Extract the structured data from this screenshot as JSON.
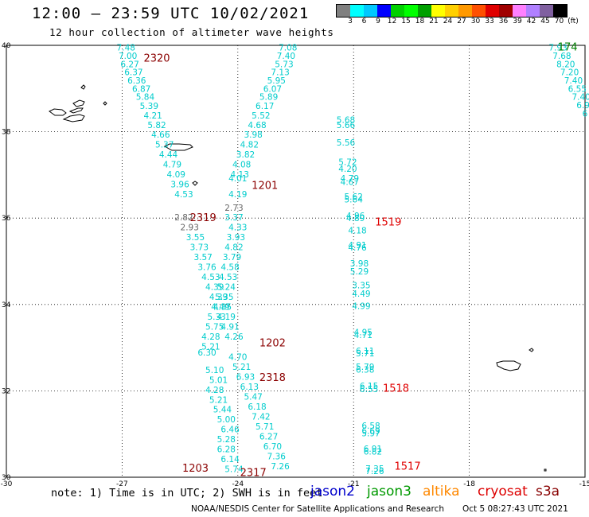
{
  "header": {
    "title": "12:00 – 23:59 UTC 10/02/2021",
    "subtitle": "12 hour collection of altimeter wave heights"
  },
  "color_scale": {
    "unit": "(ft)",
    "labels": [
      "3",
      "6",
      "9",
      "12",
      "15",
      "18",
      "21",
      "24",
      "27",
      "30",
      "33",
      "36",
      "39",
      "42",
      "45",
      "70"
    ],
    "colors": [
      "#808080",
      "#00ffff",
      "#00c8ff",
      "#0000ff",
      "#00d000",
      "#00ff00",
      "#00a000",
      "#ffff00",
      "#ffd000",
      "#ff9900",
      "#ff5000",
      "#e00000",
      "#a00000",
      "#ff80ff",
      "#b080ff",
      "#8060a0",
      "#000000"
    ]
  },
  "map": {
    "lat_labels": [
      "40",
      "38",
      "36",
      "34",
      "32",
      "30"
    ],
    "lon_labels": [
      "-30",
      "-27",
      "-24",
      "-21",
      "-18",
      "-15"
    ],
    "lon_range": [
      -30,
      -15
    ],
    "lat_range": [
      30,
      40
    ]
  },
  "tracks": [
    {
      "label": "2320",
      "label_color": "#8b0000",
      "label_lon": -26.1,
      "label_lat": 39.7,
      "points": [
        {
          "v": "7.48",
          "lon": -26.9,
          "lat": 39.95,
          "c": "#00cccc"
        },
        {
          "v": "7.00",
          "lon": -26.85,
          "lat": 39.76,
          "c": "#00cccc"
        },
        {
          "v": "6.27",
          "lon": -26.8,
          "lat": 39.57,
          "c": "#00cccc"
        },
        {
          "v": "6.37",
          "lon": -26.7,
          "lat": 39.38,
          "c": "#00cccc"
        },
        {
          "v": "6.36",
          "lon": -26.62,
          "lat": 39.19,
          "c": "#00cccc"
        },
        {
          "v": "6.87",
          "lon": -26.5,
          "lat": 39.0,
          "c": "#00cccc"
        },
        {
          "v": "5.84",
          "lon": -26.4,
          "lat": 38.81,
          "c": "#00cccc"
        },
        {
          "v": "5.39",
          "lon": -26.3,
          "lat": 38.6,
          "c": "#00cccc"
        },
        {
          "v": "4.21",
          "lon": -26.2,
          "lat": 38.38,
          "c": "#00cccc"
        },
        {
          "v": "5.82",
          "lon": -26.1,
          "lat": 38.16,
          "c": "#00cccc"
        },
        {
          "v": "4.66",
          "lon": -26.0,
          "lat": 37.94,
          "c": "#00cccc"
        },
        {
          "v": "5.37",
          "lon": -25.9,
          "lat": 37.71,
          "c": "#00cccc"
        },
        {
          "v": "4.44",
          "lon": -25.8,
          "lat": 37.48,
          "c": "#00cccc"
        },
        {
          "v": "4.79",
          "lon": -25.7,
          "lat": 37.25,
          "c": "#00cccc"
        },
        {
          "v": "4.09",
          "lon": -25.6,
          "lat": 37.02,
          "c": "#00cccc"
        },
        {
          "v": "3.96",
          "lon": -25.5,
          "lat": 36.79,
          "c": "#00cccc"
        },
        {
          "v": "4.53",
          "lon": -25.4,
          "lat": 36.56,
          "c": "#00cccc"
        }
      ]
    },
    {
      "label": "2319",
      "label_color": "#8b0000",
      "label_lon": -24.9,
      "label_lat": 36.0,
      "points": [
        {
          "v": "2.82",
          "lon": -25.4,
          "lat": 36.02,
          "c": "#666666"
        },
        {
          "v": "2.93",
          "lon": -25.25,
          "lat": 35.79,
          "c": "#666666"
        },
        {
          "v": "3.55",
          "lon": -25.1,
          "lat": 35.56,
          "c": "#00cccc"
        },
        {
          "v": "3.73",
          "lon": -25.0,
          "lat": 35.33,
          "c": "#00cccc"
        },
        {
          "v": "3.57",
          "lon": -24.9,
          "lat": 35.1,
          "c": "#00cccc"
        },
        {
          "v": "3.76",
          "lon": -24.8,
          "lat": 34.87,
          "c": "#00cccc"
        },
        {
          "v": "4.53",
          "lon": -24.7,
          "lat": 34.64,
          "c": "#00cccc"
        },
        {
          "v": "4.39",
          "lon": -24.6,
          "lat": 34.41,
          "c": "#00cccc"
        },
        {
          "v": "4.39",
          "lon": -24.5,
          "lat": 34.18,
          "c": "#00cccc"
        },
        {
          "v": "4.35",
          "lon": -24.4,
          "lat": 33.95,
          "c": "#00cccc"
        },
        {
          "v": "4.19",
          "lon": -24.3,
          "lat": 33.72,
          "c": "#00cccc"
        },
        {
          "v": "4.91",
          "lon": -24.2,
          "lat": 33.49,
          "c": "#00cccc"
        },
        {
          "v": "4.26",
          "lon": -24.1,
          "lat": 33.26,
          "c": "#00cccc"
        },
        {
          "v": "4.70",
          "lon": -24.0,
          "lat": 32.79,
          "c": "#00cccc"
        },
        {
          "v": "5.21",
          "lon": -23.9,
          "lat": 32.56,
          "c": "#00cccc"
        },
        {
          "v": "6.93",
          "lon": -23.8,
          "lat": 32.33,
          "c": "#00cccc"
        },
        {
          "v": "6.13",
          "lon": -23.7,
          "lat": 32.1,
          "c": "#00cccc"
        },
        {
          "v": "5.47",
          "lon": -23.6,
          "lat": 31.87,
          "c": "#00cccc"
        },
        {
          "v": "6.18",
          "lon": -23.5,
          "lat": 31.64,
          "c": "#00cccc"
        },
        {
          "v": "7.42",
          "lon": -23.4,
          "lat": 31.41,
          "c": "#00cccc"
        },
        {
          "v": "5.71",
          "lon": -23.3,
          "lat": 31.18,
          "c": "#00cccc"
        },
        {
          "v": "6.27",
          "lon": -23.2,
          "lat": 30.95,
          "c": "#00cccc"
        },
        {
          "v": "6.70",
          "lon": -23.1,
          "lat": 30.72,
          "c": "#00cccc"
        },
        {
          "v": "7.36",
          "lon": -23.0,
          "lat": 30.49,
          "c": "#00cccc"
        },
        {
          "v": "7.26",
          "lon": -22.9,
          "lat": 30.26,
          "c": "#00cccc"
        }
      ]
    },
    {
      "label": "1201",
      "label_color": "#8b0000",
      "label_lon": -23.3,
      "label_lat": 36.75,
      "points": [
        {
          "v": "7.08",
          "lon": -22.7,
          "lat": 39.95,
          "c": "#00cccc"
        },
        {
          "v": "7.40",
          "lon": -22.75,
          "lat": 39.76,
          "c": "#00cccc"
        },
        {
          "v": "5.73",
          "lon": -22.8,
          "lat": 39.57,
          "c": "#00cccc"
        },
        {
          "v": "7.13",
          "lon": -22.9,
          "lat": 39.38,
          "c": "#00cccc"
        },
        {
          "v": "5.95",
          "lon": -23.0,
          "lat": 39.19,
          "c": "#00cccc"
        },
        {
          "v": "6.07",
          "lon": -23.1,
          "lat": 39.0,
          "c": "#00cccc"
        },
        {
          "v": "5.89",
          "lon": -23.2,
          "lat": 38.81,
          "c": "#00cccc"
        },
        {
          "v": "6.17",
          "lon": -23.3,
          "lat": 38.6,
          "c": "#00cccc"
        },
        {
          "v": "5.52",
          "lon": -23.4,
          "lat": 38.38,
          "c": "#00cccc"
        },
        {
          "v": "4.68",
          "lon": -23.5,
          "lat": 38.16,
          "c": "#00cccc"
        },
        {
          "v": "3.98",
          "lon": -23.6,
          "lat": 37.94,
          "c": "#00cccc"
        },
        {
          "v": "4.82",
          "lon": -23.7,
          "lat": 37.71,
          "c": "#00cccc"
        },
        {
          "v": "3.82",
          "lon": -23.8,
          "lat": 37.48,
          "c": "#00cccc"
        },
        {
          "v": "4.08",
          "lon": -23.9,
          "lat": 37.25,
          "c": "#00cccc"
        },
        {
          "v": "4.13",
          "lon": -23.95,
          "lat": 37.02,
          "c": "#00cccc"
        },
        {
          "v": "4.01",
          "lon": -24.0,
          "lat": 36.92,
          "c": "#00cccc"
        },
        {
          "v": "4.19",
          "lon": -24.0,
          "lat": 36.56,
          "c": "#00cccc"
        },
        {
          "v": "2.73",
          "lon": -24.1,
          "lat": 36.24,
          "c": "#666666"
        },
        {
          "v": "3.37",
          "lon": -24.1,
          "lat": 36.02,
          "c": "#00cccc"
        }
      ]
    },
    {
      "label": "1202",
      "label_color": "#8b0000",
      "label_lon": -23.1,
      "label_lat": 33.1,
      "points": [
        {
          "v": "4.33",
          "lon": -24.0,
          "lat": 35.79,
          "c": "#00cccc"
        },
        {
          "v": "3.93",
          "lon": -24.05,
          "lat": 35.56,
          "c": "#00cccc"
        },
        {
          "v": "4.82",
          "lon": -24.1,
          "lat": 35.33,
          "c": "#00cccc"
        },
        {
          "v": "3.79",
          "lon": -24.15,
          "lat": 35.1,
          "c": "#00cccc"
        },
        {
          "v": "4.58",
          "lon": -24.2,
          "lat": 34.87,
          "c": "#00cccc"
        },
        {
          "v": "4.53",
          "lon": -24.25,
          "lat": 34.64,
          "c": "#00cccc"
        },
        {
          "v": "5.24",
          "lon": -24.3,
          "lat": 34.41,
          "c": "#00cccc"
        },
        {
          "v": "5.35",
          "lon": -24.35,
          "lat": 34.18,
          "c": "#00cccc"
        },
        {
          "v": "4.49",
          "lon": -24.45,
          "lat": 33.95,
          "c": "#00cccc"
        },
        {
          "v": "5.33",
          "lon": -24.55,
          "lat": 33.72,
          "c": "#00cccc"
        },
        {
          "v": "5.75",
          "lon": -24.6,
          "lat": 33.49,
          "c": "#00cccc"
        },
        {
          "v": "4.28",
          "lon": -24.7,
          "lat": 33.26,
          "c": "#00cccc"
        },
        {
          "v": "5.21",
          "lon": -24.7,
          "lat": 33.03,
          "c": "#00cccc"
        },
        {
          "v": "6.30",
          "lon": -24.8,
          "lat": 32.89,
          "c": "#00cccc"
        }
      ]
    },
    {
      "label": "2318",
      "label_color": "#8b0000",
      "label_lon": -23.1,
      "label_lat": 32.3,
      "points": [
        {
          "v": "5.10",
          "lon": -24.6,
          "lat": 32.49,
          "c": "#00cccc"
        },
        {
          "v": "5.01",
          "lon": -24.5,
          "lat": 32.26,
          "c": "#00cccc"
        },
        {
          "v": "4.28",
          "lon": -24.6,
          "lat": 32.03,
          "c": "#00cccc"
        },
        {
          "v": "5.21",
          "lon": -24.5,
          "lat": 31.8,
          "c": "#00cccc"
        },
        {
          "v": "5.44",
          "lon": -24.4,
          "lat": 31.57,
          "c": "#00cccc"
        },
        {
          "v": "5.00",
          "lon": -24.3,
          "lat": 31.34,
          "c": "#00cccc"
        },
        {
          "v": "6.46",
          "lon": -24.2,
          "lat": 31.11,
          "c": "#00cccc"
        },
        {
          "v": "5.28",
          "lon": -24.3,
          "lat": 30.88,
          "c": "#00cccc"
        },
        {
          "v": "6.28",
          "lon": -24.3,
          "lat": 30.65,
          "c": "#00cccc"
        },
        {
          "v": "6.14",
          "lon": -24.2,
          "lat": 30.42,
          "c": "#00cccc"
        },
        {
          "v": "5.74",
          "lon": -24.1,
          "lat": 30.19,
          "c": "#00cccc"
        }
      ]
    },
    {
      "label": "1519",
      "label_color": "#e00000",
      "label_lon": -20.1,
      "label_lat": 35.9,
      "points": [
        {
          "v": "5.68",
          "lon": -21.2,
          "lat": 38.28,
          "c": "#00cccc"
        },
        {
          "v": "5.66",
          "lon": -21.2,
          "lat": 38.16,
          "c": "#00cccc"
        },
        {
          "v": "5.56",
          "lon": -21.2,
          "lat": 37.75,
          "c": "#00cccc"
        },
        {
          "v": "5.72",
          "lon": -21.15,
          "lat": 37.3,
          "c": "#00cccc"
        },
        {
          "v": "4.20",
          "lon": -21.15,
          "lat": 37.15,
          "c": "#00cccc"
        },
        {
          "v": "4.79",
          "lon": -21.1,
          "lat": 36.92,
          "c": "#00cccc"
        },
        {
          "v": "4.67",
          "lon": -21.1,
          "lat": 36.84,
          "c": "#00cccc"
        },
        {
          "v": "5.62",
          "lon": -21.0,
          "lat": 36.5,
          "c": "#00cccc"
        },
        {
          "v": "5.64",
          "lon": -21.0,
          "lat": 36.44,
          "c": "#00cccc"
        },
        {
          "v": "4.96",
          "lon": -20.95,
          "lat": 36.06,
          "c": "#00cccc"
        },
        {
          "v": "4.89",
          "lon": -20.95,
          "lat": 36.0,
          "c": "#00cccc"
        },
        {
          "v": "4.18",
          "lon": -20.9,
          "lat": 35.72,
          "c": "#00cccc"
        },
        {
          "v": "4.91",
          "lon": -20.9,
          "lat": 35.38,
          "c": "#00cccc"
        },
        {
          "v": "4.76",
          "lon": -20.9,
          "lat": 35.32,
          "c": "#00cccc"
        },
        {
          "v": "3.98",
          "lon": -20.85,
          "lat": 34.95,
          "c": "#00cccc"
        },
        {
          "v": "5.29",
          "lon": -20.85,
          "lat": 34.77,
          "c": "#00cccc"
        },
        {
          "v": "3.35",
          "lon": -20.8,
          "lat": 34.45,
          "c": "#00cccc"
        },
        {
          "v": "4.49",
          "lon": -20.8,
          "lat": 34.25,
          "c": "#00cccc"
        },
        {
          "v": "4.99",
          "lon": -20.8,
          "lat": 33.97,
          "c": "#00cccc"
        },
        {
          "v": "4.95",
          "lon": -20.75,
          "lat": 33.36,
          "c": "#00cccc"
        },
        {
          "v": "4.71",
          "lon": -20.75,
          "lat": 33.3,
          "c": "#00cccc"
        },
        {
          "v": "6.11",
          "lon": -20.7,
          "lat": 32.93,
          "c": "#00cccc"
        },
        {
          "v": "5.71",
          "lon": -20.7,
          "lat": 32.87,
          "c": "#00cccc"
        },
        {
          "v": "5.79",
          "lon": -20.7,
          "lat": 32.56,
          "c": "#00cccc"
        },
        {
          "v": "6.38",
          "lon": -20.7,
          "lat": 32.5,
          "c": "#00cccc"
        }
      ]
    },
    {
      "label": "1518",
      "label_color": "#e00000",
      "label_lon": -19.9,
      "label_lat": 32.05,
      "points": [
        {
          "v": "6.15",
          "lon": -20.6,
          "lat": 32.12,
          "c": "#00cccc"
        },
        {
          "v": "6.55",
          "lon": -20.6,
          "lat": 32.04,
          "c": "#00cccc"
        },
        {
          "v": "6.58",
          "lon": -20.55,
          "lat": 31.2,
          "c": "#00cccc"
        },
        {
          "v": "6.69",
          "lon": -20.55,
          "lat": 31.08,
          "c": "#00cccc"
        },
        {
          "v": "5.97",
          "lon": -20.55,
          "lat": 31.02,
          "c": "#00cccc"
        },
        {
          "v": "6.91",
          "lon": -20.5,
          "lat": 30.66,
          "c": "#00cccc"
        },
        {
          "v": "6.82",
          "lon": -20.5,
          "lat": 30.6,
          "c": "#00cccc"
        }
      ]
    },
    {
      "label": "1517",
      "label_color": "#e00000",
      "label_lon": -19.6,
      "label_lat": 30.25,
      "points": [
        {
          "v": "7.35",
          "lon": -20.45,
          "lat": 30.2,
          "c": "#00cccc"
        },
        {
          "v": "7.26",
          "lon": -20.45,
          "lat": 30.15,
          "c": "#00cccc"
        }
      ]
    },
    {
      "label": "1203",
      "label_color": "#8b0000",
      "label_lon": -25.1,
      "label_lat": 30.2,
      "points": []
    },
    {
      "label": "2317",
      "label_color": "#8b0000",
      "label_lon": -23.6,
      "label_lat": 30.1,
      "points": []
    },
    {
      "label": "174",
      "label_color": "#008000",
      "label_lon": -15.45,
      "label_lat": 39.95,
      "points": [
        {
          "v": "7.93",
          "lon": -15.7,
          "lat": 39.95,
          "c": "#00cccc"
        },
        {
          "v": "7.68",
          "lon": -15.6,
          "lat": 39.76,
          "c": "#00cccc"
        },
        {
          "v": "8.20",
          "lon": -15.5,
          "lat": 39.57,
          "c": "#00cccc"
        },
        {
          "v": "7.20",
          "lon": -15.4,
          "lat": 39.38,
          "c": "#00cccc"
        },
        {
          "v": "7.40",
          "lon": -15.3,
          "lat": 39.19,
          "c": "#00cccc"
        },
        {
          "v": "6.55",
          "lon": -15.2,
          "lat": 39.0,
          "c": "#00cccc"
        },
        {
          "v": "7.40",
          "lon": -15.1,
          "lat": 38.81,
          "c": "#00cccc"
        },
        {
          "v": "6.9",
          "lon": -15.05,
          "lat": 38.62,
          "c": "#00cccc"
        },
        {
          "v": "6",
          "lon": -15.0,
          "lat": 38.43,
          "c": "#00cccc"
        }
      ]
    }
  ],
  "footer": {
    "note": "note: 1) Time is in UTC; 2) SWH is in feet",
    "satellites": [
      {
        "name": "jason2",
        "color": "#0000cc"
      },
      {
        "name": "jason3",
        "color": "#009900"
      },
      {
        "name": "altika",
        "color": "#ff8800"
      },
      {
        "name": "cryosat",
        "color": "#dd0000"
      },
      {
        "name": "s3a",
        "color": "#880000"
      }
    ],
    "credit": "NOAA/NESDIS Center for Satellite Applications and Research",
    "timestamp": "Oct  5 08:27:43 UTC 2021"
  }
}
